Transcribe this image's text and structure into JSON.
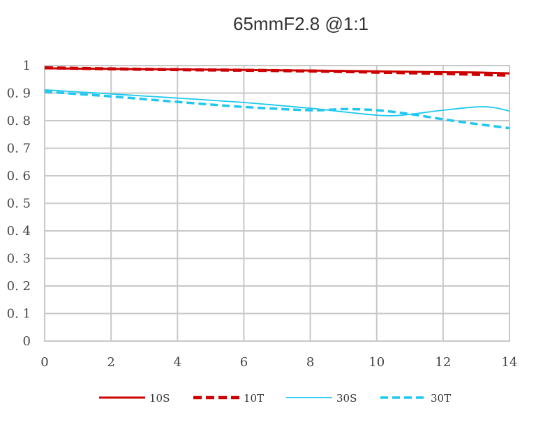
{
  "chart_data": {
    "type": "line",
    "title": "65mmF2.8 @1:1",
    "xlabel": "",
    "ylabel": "",
    "xlim": [
      0,
      14
    ],
    "ylim": [
      0,
      1
    ],
    "x_ticks": [
      "0",
      "2",
      "4",
      "6",
      "8",
      "10",
      "12",
      "14"
    ],
    "y_ticks": [
      "0",
      "0. 1",
      "0. 2",
      "0. 3",
      "0. 4",
      "0. 5",
      "0. 6",
      "0. 7",
      "0. 8",
      "0. 9",
      "1"
    ],
    "grid": true,
    "legend_position": "bottom",
    "series": [
      {
        "name": "10S",
        "color": "#cc0000",
        "dash": "solid",
        "points": [
          [
            0,
            0.99
          ],
          [
            2,
            0.988
          ],
          [
            4,
            0.986
          ],
          [
            6,
            0.984
          ],
          [
            8,
            0.982
          ],
          [
            10,
            0.979
          ],
          [
            12,
            0.976
          ],
          [
            13,
            0.975
          ],
          [
            14,
            0.972
          ]
        ]
      },
      {
        "name": "10T",
        "color": "#cc0000",
        "dash": "dashed",
        "points": [
          [
            0,
            0.992
          ],
          [
            2,
            0.988
          ],
          [
            4,
            0.985
          ],
          [
            6,
            0.983
          ],
          [
            8,
            0.98
          ],
          [
            10,
            0.976
          ],
          [
            12,
            0.971
          ],
          [
            13,
            0.968
          ],
          [
            14,
            0.965
          ]
        ]
      },
      {
        "name": "30S",
        "color": "#1ec8f0",
        "dash": "solid",
        "points": [
          [
            0,
            0.912
          ],
          [
            2,
            0.897
          ],
          [
            4,
            0.882
          ],
          [
            6,
            0.866
          ],
          [
            8,
            0.845
          ],
          [
            9,
            0.832
          ],
          [
            10,
            0.82
          ],
          [
            10.5,
            0.818
          ],
          [
            11,
            0.823
          ],
          [
            12,
            0.838
          ],
          [
            13,
            0.85
          ],
          [
            13.5,
            0.848
          ],
          [
            14,
            0.835
          ]
        ]
      },
      {
        "name": "30T",
        "color": "#1ec8f0",
        "dash": "dashed",
        "points": [
          [
            0,
            0.905
          ],
          [
            2,
            0.888
          ],
          [
            4,
            0.868
          ],
          [
            6,
            0.85
          ],
          [
            8,
            0.838
          ],
          [
            9,
            0.842
          ],
          [
            10,
            0.838
          ],
          [
            11,
            0.824
          ],
          [
            12,
            0.805
          ],
          [
            13,
            0.788
          ],
          [
            14,
            0.773
          ]
        ]
      }
    ]
  }
}
